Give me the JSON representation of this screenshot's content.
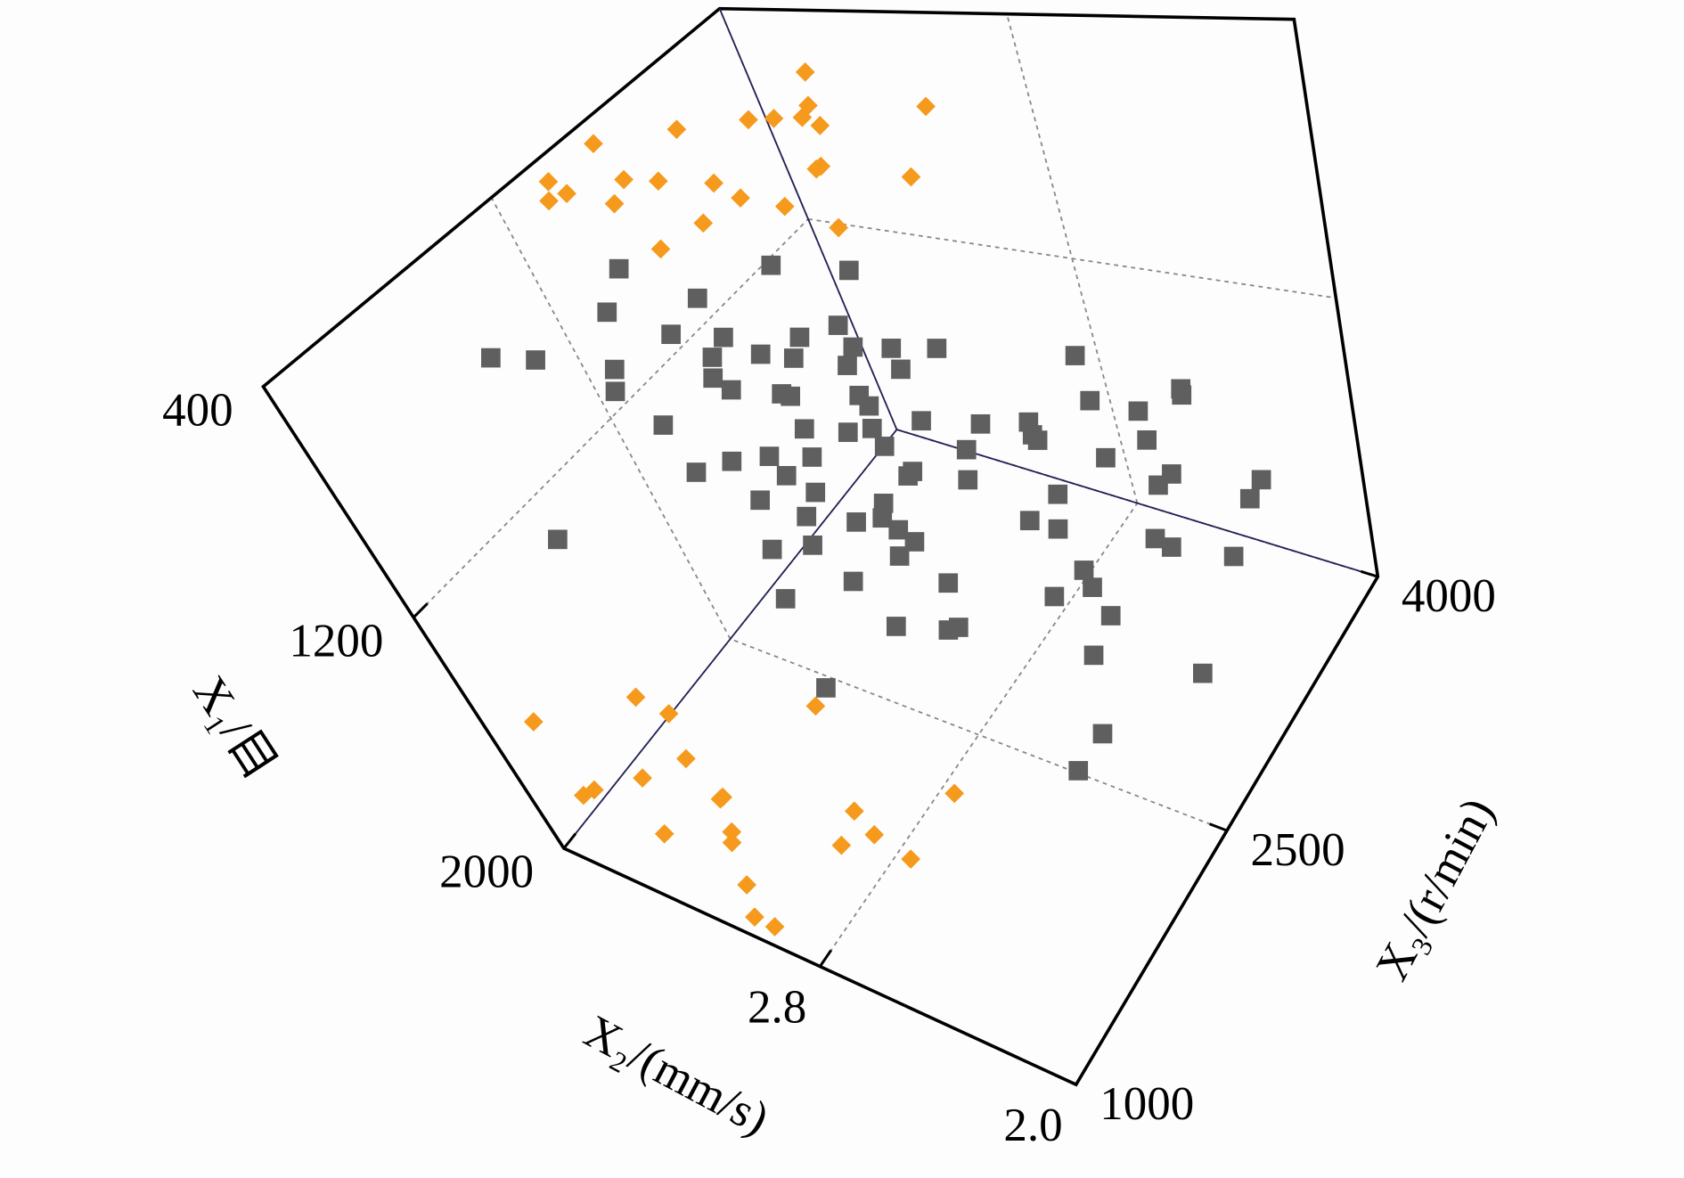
{
  "chart_data": {
    "type": "scatter3d",
    "xlabel": "X₁/目",
    "ylabel": "X₂/(mm/s)",
    "zlabel": "X₃/(r/min)",
    "xlim": [
      400,
      2000
    ],
    "xticks": [
      400,
      1200,
      2000
    ],
    "ylim": [
      2.0,
      3.6
    ],
    "yticks": [
      {
        "value": 2,
        "label": "2.0"
      },
      2.8
    ],
    "zlim": [
      1000,
      4000
    ],
    "zticks": [
      1000,
      2500,
      4000
    ],
    "grid": true,
    "series": [
      {
        "color": "#5f5f5f",
        "marker": "square",
        "x": [
          1100,
          950,
          1250,
          1300,
          1000,
          1150,
          900,
          1200,
          1400,
          1050,
          1350,
          850,
          1180,
          1220,
          980,
          1120,
          1280,
          1450,
          1500,
          1600,
          1650,
          1700,
          1550,
          1480,
          1380,
          800,
          750,
          700,
          650,
          1020,
          1080,
          1160,
          1240,
          1320,
          920,
          880,
          1420,
          1520,
          1620,
          1260,
          1140,
          1060,
          990,
          1190,
          1310,
          1370,
          1440,
          1560,
          1680,
          1750,
          600,
          560,
          720,
          780,
          840,
          1900,
          1850,
          1800,
          1780,
          1720,
          1660,
          1580,
          1460,
          1340,
          1230,
          1130,
          1030,
          930,
          830,
          730,
          630,
          530,
          480,
          1210,
          1090,
          1270,
          1170,
          1010,
          1390,
          1490,
          960,
          1110,
          1290,
          1590,
          1710,
          1820,
          1050,
          940,
          1150,
          1250
        ],
        "y": [
          2.9,
          3.0,
          2.8,
          2.7,
          3.1,
          2.9,
          3.2,
          2.6,
          2.8,
          3.0,
          2.5,
          3.1,
          2.9,
          2.7,
          3.0,
          2.8,
          2.6,
          2.5,
          2.4,
          2.3,
          2.4,
          2.2,
          2.6,
          2.7,
          2.9,
          3.3,
          3.2,
          3.4,
          3.3,
          2.9,
          3.1,
          2.8,
          2.6,
          2.9,
          3.0,
          3.2,
          2.7,
          2.5,
          2.2,
          3.0,
          2.7,
          3.0,
          2.8,
          3.1,
          2.4,
          2.6,
          2.9,
          2.3,
          2.5,
          2.3,
          3.4,
          3.0,
          2.9,
          2.6,
          3.1,
          2.4,
          2.2,
          2.6,
          2.3,
          2.8,
          2.5,
          2.7,
          3.0,
          2.8,
          3.2,
          2.6,
          2.9,
          2.7,
          3.0,
          2.8,
          3.1,
          2.9,
          3.2,
          2.5,
          2.7,
          3.0,
          3.3,
          3.2,
          2.4,
          2.6,
          2.8,
          2.5,
          2.3,
          2.9,
          2.4,
          2.7,
          3.3,
          2.6,
          3.0,
          3.1
        ],
        "z": [
          2600,
          2500,
          2700,
          2400,
          2800,
          2300,
          2550,
          2650,
          2450,
          2900,
          2750,
          2350,
          2200,
          3000,
          2100,
          2600,
          3100,
          2900,
          2800,
          3200,
          3300,
          3400,
          3500,
          2500,
          2600,
          2200,
          2400,
          2000,
          2300,
          3000,
          2700,
          2850,
          3100,
          2450,
          1900,
          2650,
          3300,
          3600,
          3700,
          2900,
          2500,
          2300,
          2600,
          2700,
          3400,
          3500,
          2300,
          2700,
          3000,
          3800,
          1800,
          1700,
          2100,
          2500,
          2000,
          2600,
          3000,
          3900,
          2200,
          3500,
          3600,
          2400,
          2800,
          2500,
          3300,
          2700,
          2000,
          2900,
          3100,
          2600,
          2450,
          2550,
          2300,
          1800,
          1600,
          2100,
          3200,
          2800,
          3700,
          2300,
          2200,
          3300,
          3500,
          1900,
          2700,
          3100,
          1500,
          1700,
          2900,
          2500
        ]
      },
      {
        "color": "#f59a1c",
        "marker": "diamond",
        "x": [
          450,
          500,
          550,
          420,
          480,
          600,
          650,
          520,
          580,
          700,
          460,
          540,
          620,
          680,
          500,
          440,
          560,
          760,
          700,
          800,
          620,
          480,
          530,
          590,
          1650,
          1700,
          1750,
          1800,
          1850,
          1900,
          1950,
          1600,
          1720,
          1880,
          1780,
          1980,
          1680,
          1820,
          1920,
          1760,
          1560,
          1900,
          1840,
          1700,
          1960
        ],
        "y": [
          3.4,
          3.3,
          3.5,
          3.2,
          3.6,
          3.1,
          3.4,
          3.0,
          3.3,
          3.2,
          3.5,
          3.4,
          3.0,
          3.3,
          3.1,
          3.5,
          3.2,
          3.0,
          3.4,
          3.1,
          3.3,
          3.6,
          3.2,
          3.5,
          3.0,
          3.2,
          3.4,
          2.8,
          3.1,
          3.3,
          3.5,
          2.9,
          2.7,
          3.0,
          3.4,
          3.2,
          3.6,
          2.6,
          2.9,
          3.1,
          3.3,
          2.8,
          3.5,
          2.5,
          3.0
        ],
        "z": [
          3200,
          3400,
          3000,
          3600,
          2800,
          3300,
          3700,
          2900,
          3100,
          3500,
          2700,
          3000,
          3800,
          3200,
          3400,
          2600,
          2800,
          3600,
          3900,
          3300,
          2700,
          3100,
          3500,
          2900,
          1200,
          1400,
          1100,
          1600,
          1300,
          1200,
          1500,
          1800,
          1300,
          1100,
          1700,
          1400,
          1250,
          1500,
          1000,
          1350,
          1450,
          1650,
          1150,
          1750,
          1050
        ]
      }
    ]
  }
}
